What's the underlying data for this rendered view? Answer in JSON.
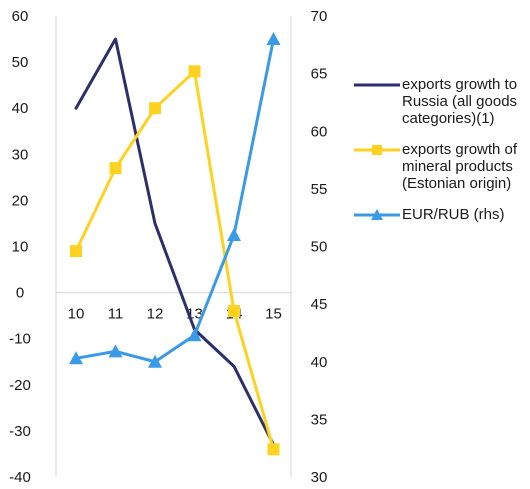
{
  "chart_data": {
    "type": "line",
    "categories": [
      "10",
      "11",
      "12",
      "13",
      "14",
      "15"
    ],
    "y_left": {
      "min": -40,
      "max": 60,
      "step": 10,
      "ticks": [
        "-40",
        "-30",
        "-20",
        "-10",
        "0",
        "10",
        "20",
        "30",
        "40",
        "50",
        "60"
      ]
    },
    "y_right": {
      "min": 30,
      "max": 70,
      "step": 5,
      "ticks": [
        "30",
        "35",
        "40",
        "45",
        "50",
        "55",
        "60",
        "65",
        "70"
      ]
    },
    "series": [
      {
        "name": "exports growth to Russia (all goods categories)(1)",
        "axis": "left",
        "color": "#2b2f6b",
        "marker": "none",
        "values": [
          40,
          55,
          15,
          -8,
          -16,
          -33
        ]
      },
      {
        "name": "exports growth of mineral products (Estonian origin)",
        "axis": "left",
        "color": "#ffd21f",
        "marker": "square",
        "values": [
          9,
          27,
          40,
          48,
          -4,
          -34
        ]
      },
      {
        "name": "EUR/RUB (rhs)",
        "axis": "right",
        "color": "#3b9ae8",
        "marker": "triangle",
        "values": [
          40.3,
          40.9,
          40.0,
          42.3,
          51.0,
          68.0
        ]
      }
    ],
    "legend_position": "right",
    "grid": false
  }
}
